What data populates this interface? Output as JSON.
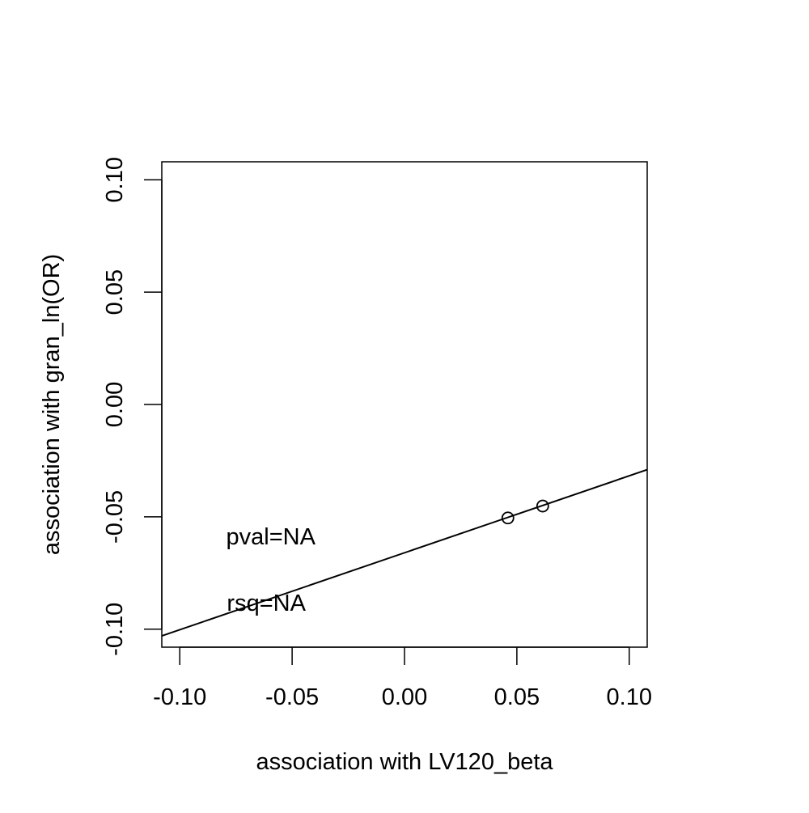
{
  "chart_data": {
    "type": "scatter",
    "title": "",
    "xlabel": "association with LV120_beta",
    "ylabel": "association with gran_ln(OR)",
    "xlim": [
      -0.108,
      0.108
    ],
    "ylim": [
      -0.108,
      0.108
    ],
    "x_ticks": [
      -0.1,
      -0.05,
      0.0,
      0.05,
      0.1
    ],
    "x_tick_labels": [
      "-0.10",
      "-0.05",
      "0.00",
      "0.05",
      "0.10"
    ],
    "y_ticks": [
      -0.1,
      -0.05,
      0.0,
      0.05,
      0.1
    ],
    "y_tick_labels": [
      "-0.10",
      "-0.05",
      "0.00",
      "0.05",
      "0.10"
    ],
    "grid": false,
    "points": [
      {
        "x": 0.046,
        "y": -0.0505
      },
      {
        "x": 0.0615,
        "y": -0.0452
      }
    ],
    "fit_line": {
      "intercept": -0.066,
      "slope": 0.3425
    },
    "annotations": [
      {
        "text": "pval=NA",
        "x": -0.0595,
        "y": -0.0595
      },
      {
        "text": "rsq=NA",
        "x": -0.0615,
        "y": -0.089
      }
    ],
    "colors": {
      "ink": "#000000",
      "background": "#ffffff"
    }
  }
}
